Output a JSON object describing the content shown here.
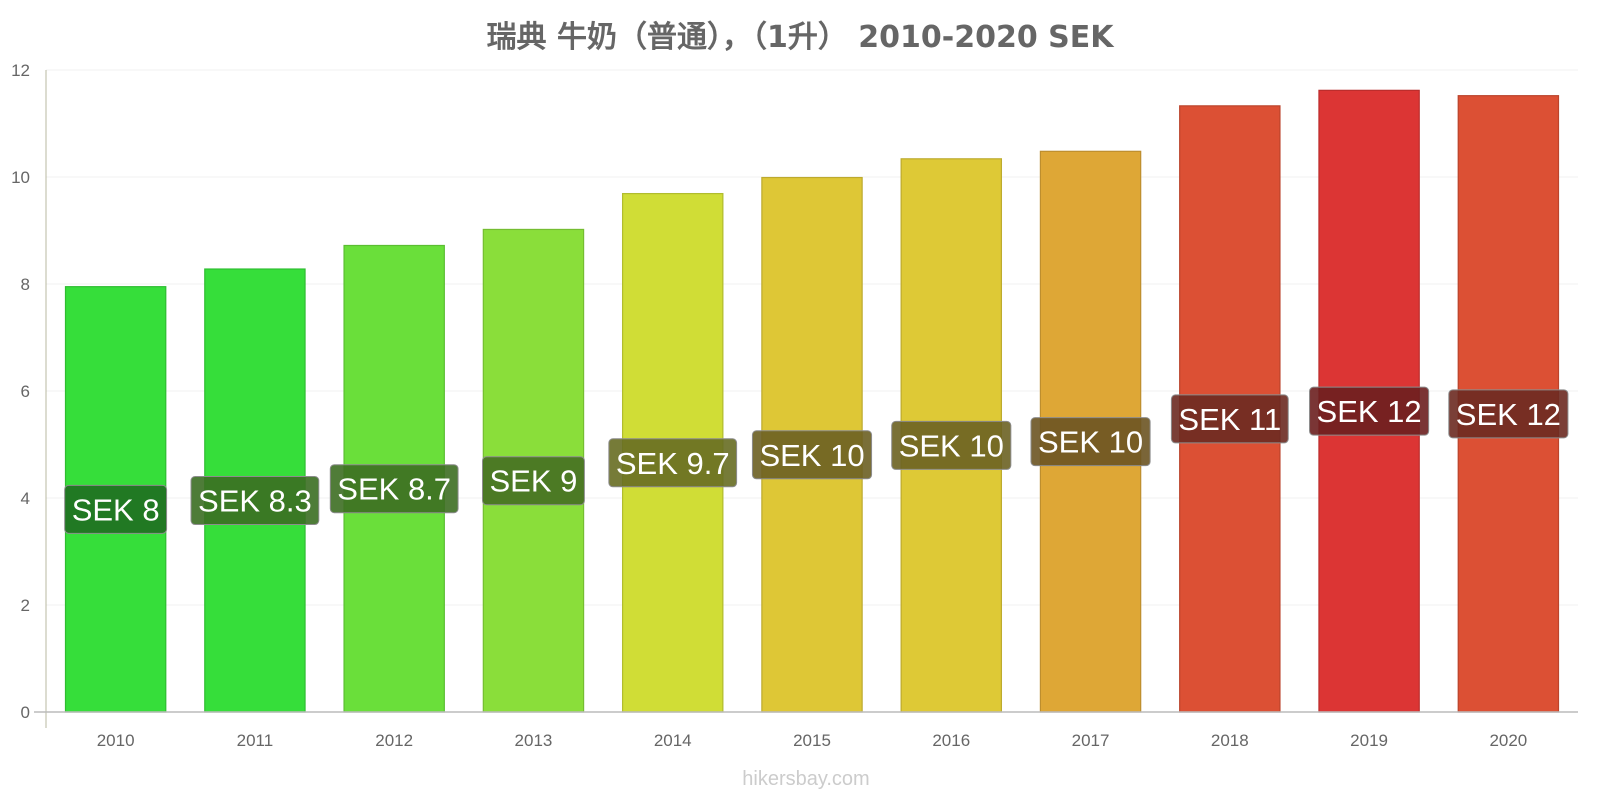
{
  "chart_data": {
    "type": "bar",
    "title": "瑞典 牛奶（普通），（1升） 2010-2020 SEK",
    "categories": [
      "2010",
      "2011",
      "2012",
      "2013",
      "2014",
      "2015",
      "2016",
      "2017",
      "2018",
      "2019",
      "2020"
    ],
    "values": [
      7.95,
      8.28,
      8.72,
      9.02,
      9.69,
      9.99,
      10.34,
      10.48,
      11.33,
      11.62,
      11.52
    ],
    "data_labels": [
      "SEK 8",
      "SEK 8.3",
      "SEK 8.7",
      "SEK 9",
      "SEK 9.7",
      "SEK 10",
      "SEK 10",
      "SEK 10",
      "SEK 11",
      "SEK 12",
      "SEK 12"
    ],
    "colors": [
      "#36de3a",
      "#36de3a",
      "#6adf3a",
      "#8ade3a",
      "#d0dd36",
      "#dec736",
      "#dec936",
      "#dea736",
      "#dc5034",
      "#dc3534",
      "#dc5034"
    ],
    "label_bg_colors": [
      "#1f6e21",
      "#3b6e22",
      "#3d6e22",
      "#456f22",
      "#676d22",
      "#6c5f22",
      "#6c6222",
      "#6c5422",
      "#6c2a21",
      "#6c1f1f",
      "#6c2a21"
    ],
    "ylim": [
      0,
      12
    ],
    "yticks": [
      0,
      2,
      4,
      6,
      8,
      10,
      12
    ],
    "grid": true,
    "xlabel": "",
    "ylabel": ""
  },
  "watermark": "hikersbay.com"
}
